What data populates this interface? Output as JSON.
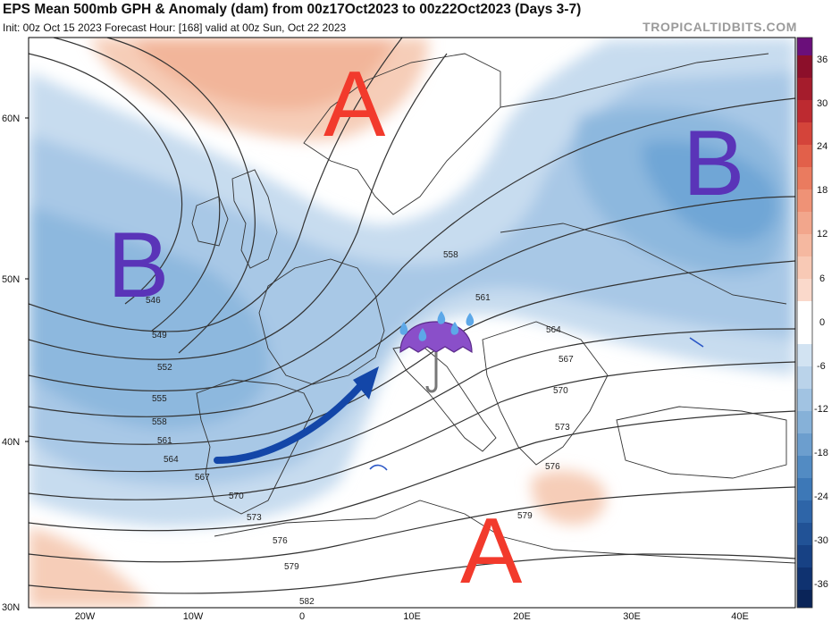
{
  "header": {
    "title": "EPS Mean 500mb GPH & Anomaly (dam) from 00z17Oct2023 to 00z22Oct2023 (Days 3-7)",
    "subtitle": "Init: 00z Oct 15 2023   Forecast Hour: [168]   valid at 00z Sun, Oct 22 2023",
    "brand": "TROPICALTIDBITS.COM"
  },
  "map": {
    "lat_labels": [
      "60N",
      "50N",
      "40N",
      "30N"
    ],
    "lon_labels": [
      "20W",
      "10W",
      "0",
      "10E",
      "20E",
      "30E",
      "40E"
    ],
    "contour_labels": [
      "546",
      "549",
      "552",
      "555",
      "558",
      "561",
      "564",
      "567",
      "570",
      "573",
      "576",
      "579",
      "582",
      "558",
      "561",
      "564",
      "567",
      "570",
      "573",
      "576",
      "579"
    ],
    "annotations": {
      "high_north": "A",
      "high_south": "A",
      "low_west": "B",
      "low_east": "B"
    },
    "colors": {
      "high_letter": "#f23a2c",
      "low_letter": "#5a34b8",
      "arrow": "#1346a8",
      "positive_anomaly": "#f2b59a",
      "negative_anomaly": "#6fa6d6"
    },
    "icons": [
      "umbrella-rain-icon",
      "curved-arrow-icon"
    ]
  },
  "colorbar": {
    "ticks": [
      "36",
      "30",
      "24",
      "18",
      "12",
      "6",
      "0",
      "-6",
      "-12",
      "-18",
      "-24",
      "-30",
      "-36"
    ]
  }
}
